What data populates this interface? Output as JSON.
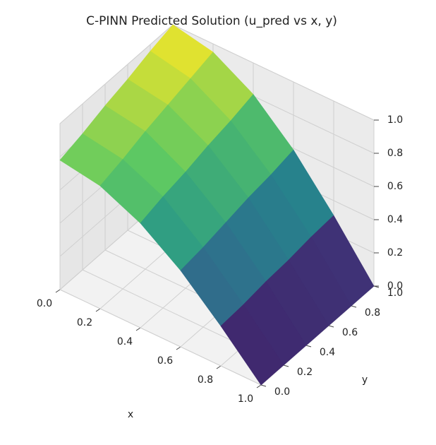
{
  "chart_data": {
    "type": "surface",
    "title": "C-PINN Predicted Solution (u_pred vs x, y)",
    "xlabel": "x",
    "ylabel": "y",
    "x": [
      0,
      0.2,
      0.4,
      0.6,
      0.8,
      1.0
    ],
    "y": [
      0,
      0.2,
      0.4,
      0.6,
      0.8,
      1.0
    ],
    "z": [
      [
        0.78,
        0.74,
        0.63,
        0.46,
        0.24,
        0
      ],
      [
        0.82,
        0.78,
        0.67,
        0.48,
        0.25,
        0
      ],
      [
        0.87,
        0.83,
        0.7,
        0.51,
        0.27,
        0
      ],
      [
        0.91,
        0.87,
        0.74,
        0.54,
        0.28,
        0
      ],
      [
        0.96,
        0.91,
        0.77,
        0.56,
        0.3,
        0
      ],
      [
        1.0,
        0.95,
        0.81,
        0.59,
        0.31,
        0
      ]
    ],
    "colormap": "viridis",
    "xlim": [
      0,
      1
    ],
    "ylim": [
      0,
      1
    ],
    "zlim": [
      0,
      1
    ],
    "xticks": [
      {
        "value": 0,
        "label": "0.0"
      },
      {
        "value": 0.2,
        "label": "0.2"
      },
      {
        "value": 0.4,
        "label": "0.4"
      },
      {
        "value": 0.6,
        "label": "0.6"
      },
      {
        "value": 0.8,
        "label": "0.8"
      },
      {
        "value": 1,
        "label": "1.0"
      }
    ],
    "yticks": [
      {
        "value": 0,
        "label": "0.0"
      },
      {
        "value": 0.2,
        "label": "0.2"
      },
      {
        "value": 0.4,
        "label": "0.4"
      },
      {
        "value": 0.6,
        "label": "0.6"
      },
      {
        "value": 0.8,
        "label": "0.8"
      },
      {
        "value": 1,
        "label": "1.0"
      }
    ],
    "zticks": [
      {
        "value": 0,
        "label": "0.0"
      },
      {
        "value": 0.2,
        "label": "0.2"
      },
      {
        "value": 0.4,
        "label": "0.4"
      },
      {
        "value": 0.6,
        "label": "0.6"
      },
      {
        "value": 0.8,
        "label": "0.8"
      },
      {
        "value": 1,
        "label": "1.0"
      }
    ],
    "grid": true
  }
}
